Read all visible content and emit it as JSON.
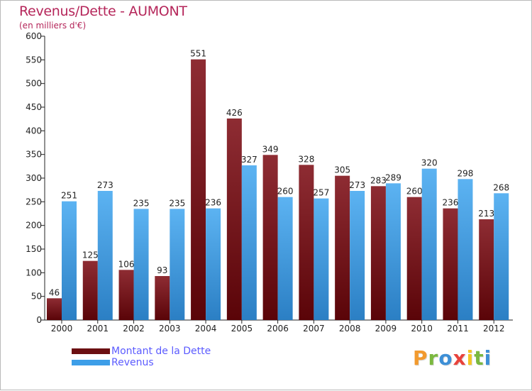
{
  "chart_data": {
    "type": "bar",
    "title": "Revenus/Dette - AUMONT",
    "subtitle": "(en milliers d'€)",
    "xlabel": "",
    "ylabel": "",
    "ylim": [
      0,
      600
    ],
    "ytick_step": 50,
    "grid": false,
    "legend_position": "bottom-left",
    "categories": [
      "2000",
      "2001",
      "2002",
      "2003",
      "2004",
      "2005",
      "2006",
      "2007",
      "2008",
      "2009",
      "2010",
      "2011",
      "2012"
    ],
    "series": [
      {
        "name": "Montant de la Dette",
        "color": "#7a1a1e",
        "values": [
          46,
          125,
          106,
          93,
          551,
          426,
          349,
          328,
          305,
          283,
          260,
          236,
          213
        ]
      },
      {
        "name": "Revenus",
        "color": "#3a9be6",
        "values": [
          251,
          273,
          235,
          235,
          236,
          327,
          260,
          257,
          273,
          289,
          320,
          298,
          268
        ]
      }
    ]
  },
  "legend": {
    "items": [
      {
        "label": "Montant de la Dette",
        "color": "#6b0f12"
      },
      {
        "label": "Revenus",
        "color": "#3d9ee8"
      }
    ]
  },
  "brand": {
    "letters": [
      "P",
      "r",
      "o",
      "x",
      "i",
      "t",
      "i"
    ],
    "colors": [
      "#f29a2e",
      "#7bb83f",
      "#3d8fd6",
      "#e8423b",
      "#f3c623",
      "#7bb83f",
      "#3d8fd6"
    ]
  }
}
